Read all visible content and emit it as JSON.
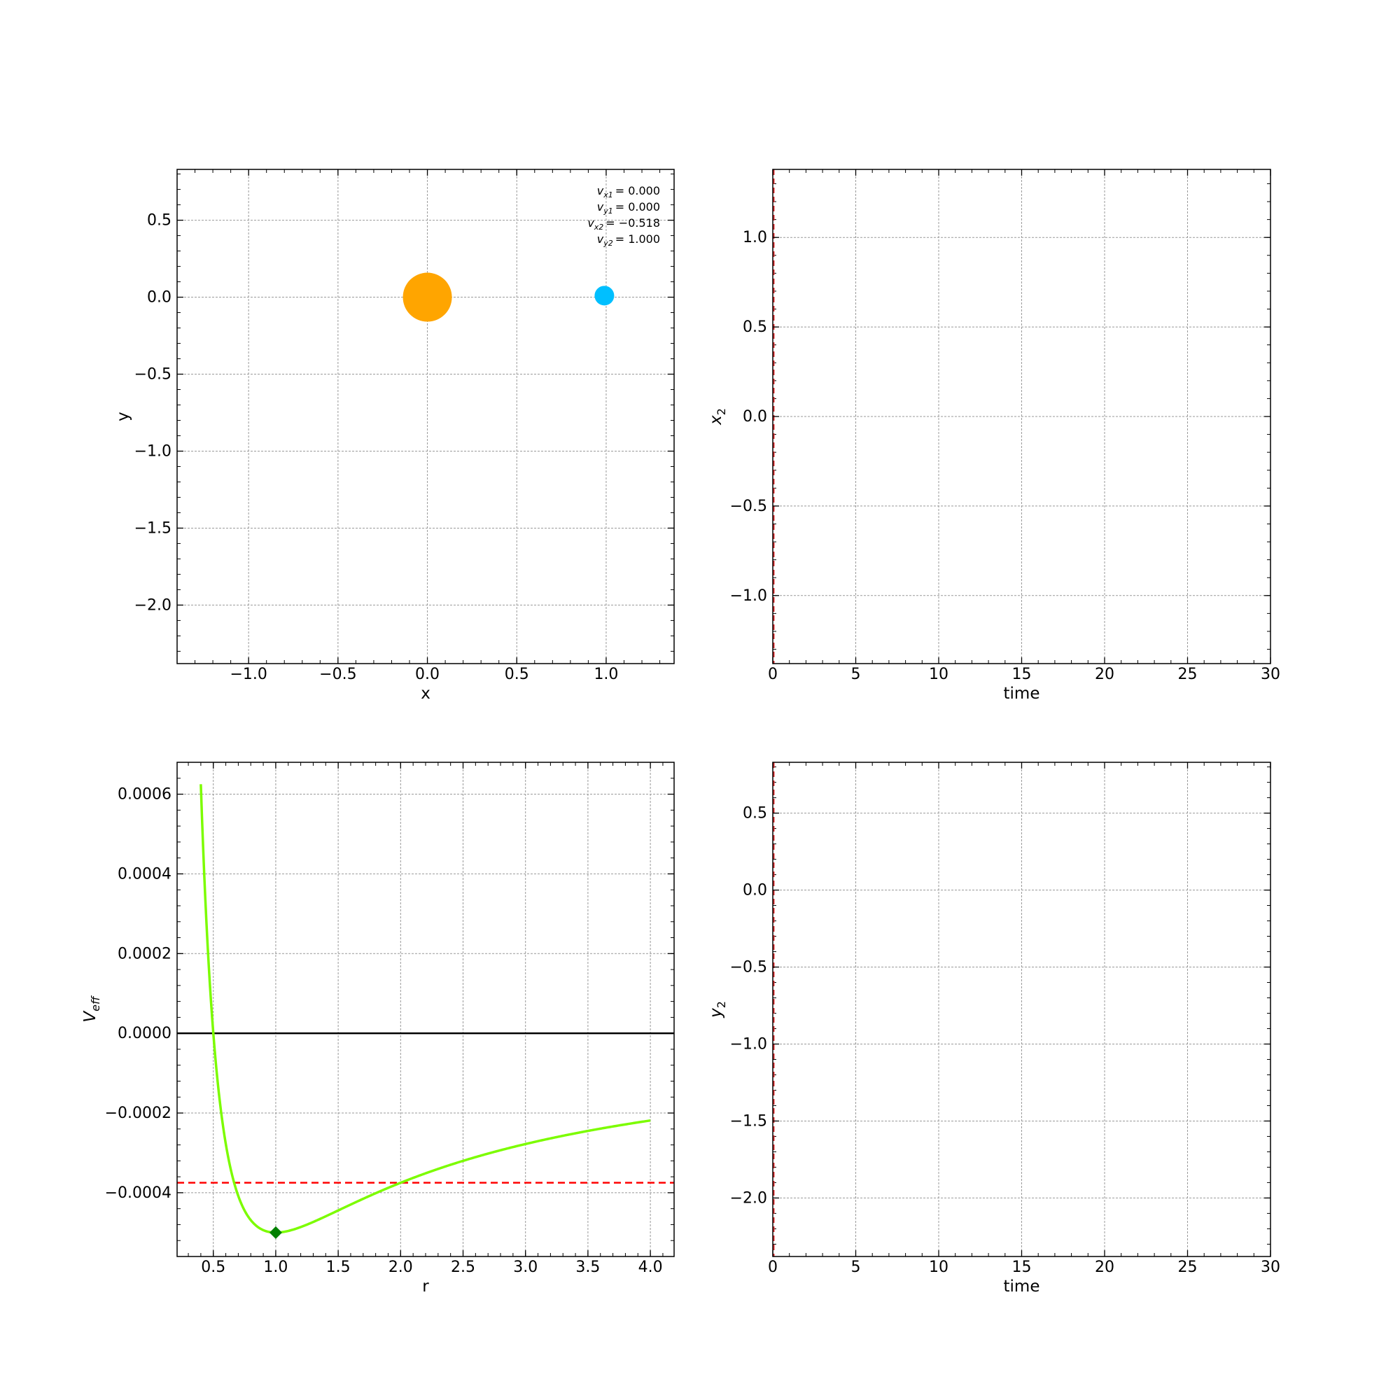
{
  "chart_data": [
    {
      "type": "scatter",
      "xlabel": "x",
      "ylabel": "y",
      "xlim": [
        -1.4,
        1.38
      ],
      "ylim": [
        -2.38,
        0.83
      ],
      "xticks": [
        -1.0,
        -0.5,
        0.0,
        0.5,
        1.0
      ],
      "xtick_labels": [
        "−1.0",
        "−0.5",
        "0.0",
        "0.5",
        "1.0"
      ],
      "yticks": [
        0.5,
        0.0,
        -0.5,
        -1.0,
        -1.5,
        -2.0
      ],
      "ytick_labels": [
        "0.5",
        "0.0",
        "−0.5",
        "−1.0",
        "−1.5",
        "−2.0"
      ],
      "grid": true,
      "points": [
        {
          "x": 0.0,
          "y": 0.0,
          "color": "#ffa500",
          "size": "large"
        },
        {
          "x": 0.99,
          "y": 0.01,
          "color": "#00bfff",
          "size": "small"
        }
      ],
      "annotations": [
        {
          "sym": "v",
          "sub": "x1",
          "eq": "= 0.000"
        },
        {
          "sym": "v",
          "sub": "y1",
          "eq": "= 0.000"
        },
        {
          "sym": "v",
          "sub": "x2",
          "eq": "= −0.518"
        },
        {
          "sym": "v",
          "sub": "y2",
          "eq": "= 1.000"
        }
      ]
    },
    {
      "type": "line",
      "xlabel": "time",
      "ylabel_sym": "x",
      "ylabel_sub": "2",
      "xlim": [
        0,
        30
      ],
      "ylim": [
        -1.38,
        1.38
      ],
      "xticks": [
        0,
        5,
        10,
        15,
        20,
        25,
        30
      ],
      "xtick_labels": [
        "0",
        "5",
        "10",
        "15",
        "20",
        "25",
        "30"
      ],
      "yticks": [
        1.0,
        0.5,
        0.0,
        -0.5,
        -1.0
      ],
      "ytick_labels": [
        "1.0",
        "0.5",
        "0.0",
        "−0.5",
        "−1.0"
      ],
      "grid": true,
      "vline": {
        "x": 0.05,
        "color": "#d62728",
        "style": "dashed"
      }
    },
    {
      "type": "line",
      "xlabel": "r",
      "ylabel_sym": "V",
      "ylabel_sub": "eff",
      "xlim": [
        0.21,
        4.19
      ],
      "ylim": [
        -0.00056,
        0.00068
      ],
      "xticks": [
        0.5,
        1.0,
        1.5,
        2.0,
        2.5,
        3.0,
        3.5,
        4.0
      ],
      "xtick_labels": [
        "0.5",
        "1.0",
        "1.5",
        "2.0",
        "2.5",
        "3.0",
        "3.5",
        "4.0"
      ],
      "yticks": [
        0.0006,
        0.0004,
        0.0002,
        0.0,
        -0.0002,
        -0.0004
      ],
      "ytick_labels": [
        "0.0006",
        "0.0004",
        "0.0002",
        "0.0000",
        "−0.0002",
        "−0.0004"
      ],
      "grid": true,
      "curve": {
        "formula": "V(r) = 0.0005/r^2 - 0.001/r",
        "r_range": [
          0.4,
          4.0
        ],
        "color": "#7cfc00"
      },
      "hlines": [
        {
          "y": 0.0,
          "color": "#000000",
          "style": "solid"
        },
        {
          "y": -0.000375,
          "color": "#ff0000",
          "style": "dashed"
        }
      ],
      "marker": {
        "x": 1.0,
        "y": -0.0005,
        "color": "#008000",
        "shape": "diamond"
      }
    },
    {
      "type": "line",
      "xlabel": "time",
      "ylabel_sym": "y",
      "ylabel_sub": "2",
      "xlim": [
        0,
        30
      ],
      "ylim": [
        -2.38,
        0.83
      ],
      "xticks": [
        0,
        5,
        10,
        15,
        20,
        25,
        30
      ],
      "xtick_labels": [
        "0",
        "5",
        "10",
        "15",
        "20",
        "25",
        "30"
      ],
      "yticks": [
        0.5,
        0.0,
        -0.5,
        -1.0,
        -1.5,
        -2.0
      ],
      "ytick_labels": [
        "0.5",
        "0.0",
        "−0.5",
        "−1.0",
        "−1.5",
        "−2.0"
      ],
      "grid": true,
      "vline": {
        "x": 0.05,
        "color": "#d62728",
        "style": "dashed"
      }
    }
  ]
}
